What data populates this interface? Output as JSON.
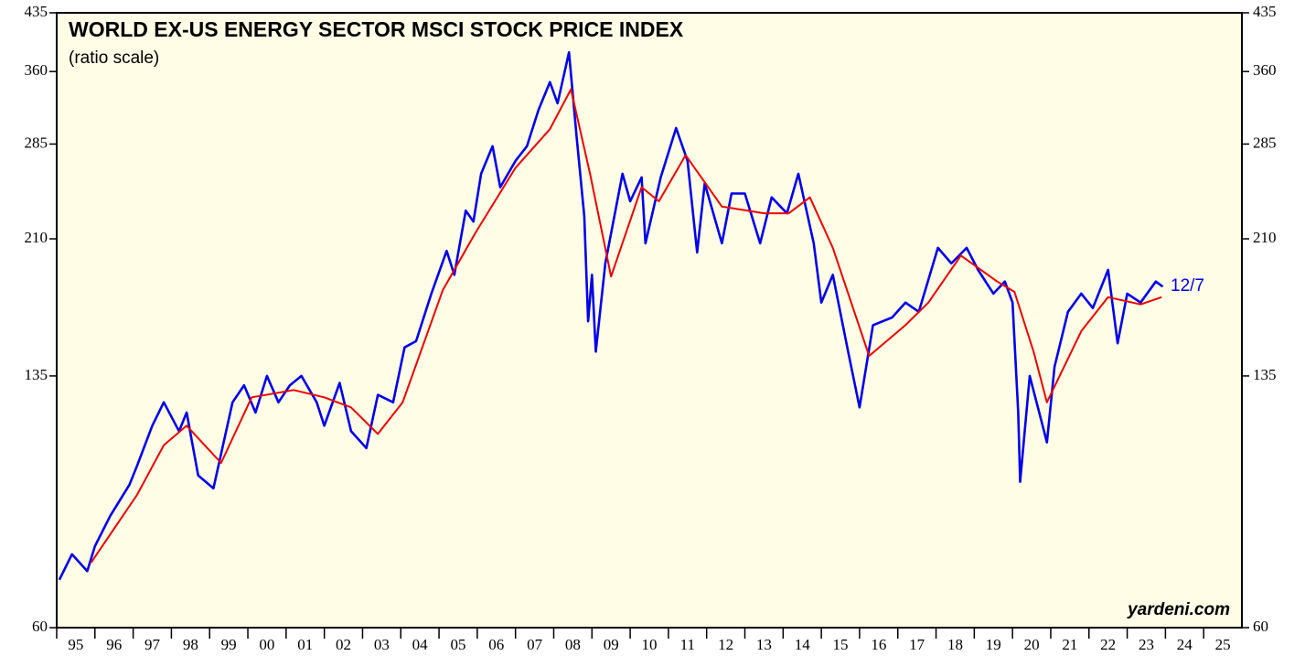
{
  "chart_data": {
    "type": "line",
    "title": "WORLD EX-US ENERGY SECTOR MSCI STOCK PRICE INDEX",
    "subtitle": "(ratio scale)",
    "annotations": [
      "12/7",
      "yardeni.com"
    ],
    "log_scale": true,
    "xlim": [
      1995,
      2026
    ],
    "ylim": [
      60,
      435
    ],
    "yticks": [
      60,
      135,
      210,
      285,
      360,
      435
    ],
    "xticks": [
      {
        "value": 1995,
        "label": "95"
      },
      {
        "value": 1996,
        "label": "96"
      },
      {
        "value": 1997,
        "label": "97"
      },
      {
        "value": 1998,
        "label": "98"
      },
      {
        "value": 1999,
        "label": "99"
      },
      {
        "value": 2000,
        "label": "00"
      },
      {
        "value": 2001,
        "label": "01"
      },
      {
        "value": 2002,
        "label": "02"
      },
      {
        "value": 2003,
        "label": "03"
      },
      {
        "value": 2004,
        "label": "04"
      },
      {
        "value": 2005,
        "label": "05"
      },
      {
        "value": 2006,
        "label": "06"
      },
      {
        "value": 2007,
        "label": "07"
      },
      {
        "value": 2008,
        "label": "08"
      },
      {
        "value": 2009,
        "label": "09"
      },
      {
        "value": 2010,
        "label": "10"
      },
      {
        "value": 2011,
        "label": "11"
      },
      {
        "value": 2012,
        "label": "12"
      },
      {
        "value": 2013,
        "label": "13"
      },
      {
        "value": 2014,
        "label": "14"
      },
      {
        "value": 2015,
        "label": "15"
      },
      {
        "value": 2016,
        "label": "16"
      },
      {
        "value": 2017,
        "label": "17"
      },
      {
        "value": 2018,
        "label": "18"
      },
      {
        "value": 2019,
        "label": "19"
      },
      {
        "value": 2020,
        "label": "20"
      },
      {
        "value": 2021,
        "label": "21"
      },
      {
        "value": 2022,
        "label": "22"
      },
      {
        "value": 2023,
        "label": "23"
      },
      {
        "value": 2024,
        "label": "24"
      },
      {
        "value": 2025,
        "label": "25"
      }
    ],
    "series": [
      {
        "color": "#0000ee",
        "x": [
          1995.07,
          1995.4,
          1995.8,
          1996.0,
          1996.4,
          1996.9,
          1997.1,
          1997.5,
          1997.8,
          1998.2,
          1998.4,
          1998.7,
          1999.1,
          1999.6,
          1999.9,
          2000.2,
          2000.5,
          2000.8,
          2001.1,
          2001.4,
          2001.8,
          2002.0,
          2002.4,
          2002.7,
          2003.1,
          2003.4,
          2003.8,
          2004.1,
          2004.4,
          2004.8,
          2005.2,
          2005.4,
          2005.7,
          2005.9,
          2006.1,
          2006.4,
          2006.6,
          2007.0,
          2007.3,
          2007.6,
          2007.9,
          2008.1,
          2008.4,
          2008.6,
          2008.8,
          2008.9,
          2009.0,
          2009.1,
          2009.35,
          2009.8,
          2010.0,
          2010.3,
          2010.4,
          2010.8,
          2011.2,
          2011.5,
          2011.75,
          2011.95,
          2012.4,
          2012.65,
          2013.0,
          2013.4,
          2013.7,
          2014.1,
          2014.4,
          2014.8,
          2015.0,
          2015.3,
          2015.7,
          2016.0,
          2016.35,
          2016.85,
          2017.2,
          2017.55,
          2018.05,
          2018.4,
          2018.8,
          2019.1,
          2019.5,
          2019.8,
          2020.0,
          2020.15,
          2020.2,
          2020.45,
          2020.7,
          2020.9,
          2021.1,
          2021.45,
          2021.8,
          2022.1,
          2022.5,
          2022.75,
          2023.0,
          2023.35,
          2023.75,
          2023.93
        ],
        "values": [
          70,
          76,
          72,
          78,
          86,
          95,
          101,
          115,
          124,
          113,
          120,
          98,
          94,
          124,
          131,
          120,
          135,
          124,
          131,
          135,
          124,
          115,
          132,
          113,
          107,
          127,
          124,
          148,
          151,
          176,
          202,
          187,
          230,
          222,
          259,
          283,
          248,
          270,
          283,
          318,
          348,
          325,
          383,
          291,
          226,
          161,
          187,
          146,
          194,
          259,
          237,
          256,
          207,
          256,
          300,
          270,
          201,
          251,
          207,
          243,
          243,
          207,
          240,
          228,
          259,
          207,
          171,
          187,
          146,
          122,
          159,
          163,
          171,
          166,
          204,
          194,
          204,
          190,
          176,
          183,
          171,
          120,
          96,
          135,
          120,
          109,
          139,
          166,
          176,
          168,
          190,
          150,
          176,
          171,
          183,
          180
        ]
      },
      {
        "color": "#ee0000",
        "x": [
          1995.9,
          1997.1,
          1997.8,
          1998.4,
          1999.3,
          2000.1,
          2001.2,
          2002.0,
          2002.7,
          2003.4,
          2004.05,
          2005.1,
          2005.95,
          2007.0,
          2007.9,
          2008.45,
          2008.95,
          2009.5,
          2010.3,
          2010.75,
          2011.45,
          2012.4,
          2013.5,
          2014.15,
          2014.7,
          2015.3,
          2016.25,
          2017.2,
          2017.8,
          2018.65,
          2019.6,
          2020.05,
          2020.55,
          2020.9,
          2021.8,
          2022.5,
          2023.35,
          2023.9
        ],
        "values": [
          74,
          92,
          108,
          115,
          102,
          126,
          129,
          126,
          122,
          112,
          124,
          178,
          214,
          264,
          299,
          340,
          259,
          186,
          248,
          237,
          275,
          233,
          228,
          228,
          240,
          204,
          144,
          159,
          171,
          199,
          183,
          177,
          146,
          124,
          156,
          174,
          170,
          174
        ]
      }
    ]
  }
}
